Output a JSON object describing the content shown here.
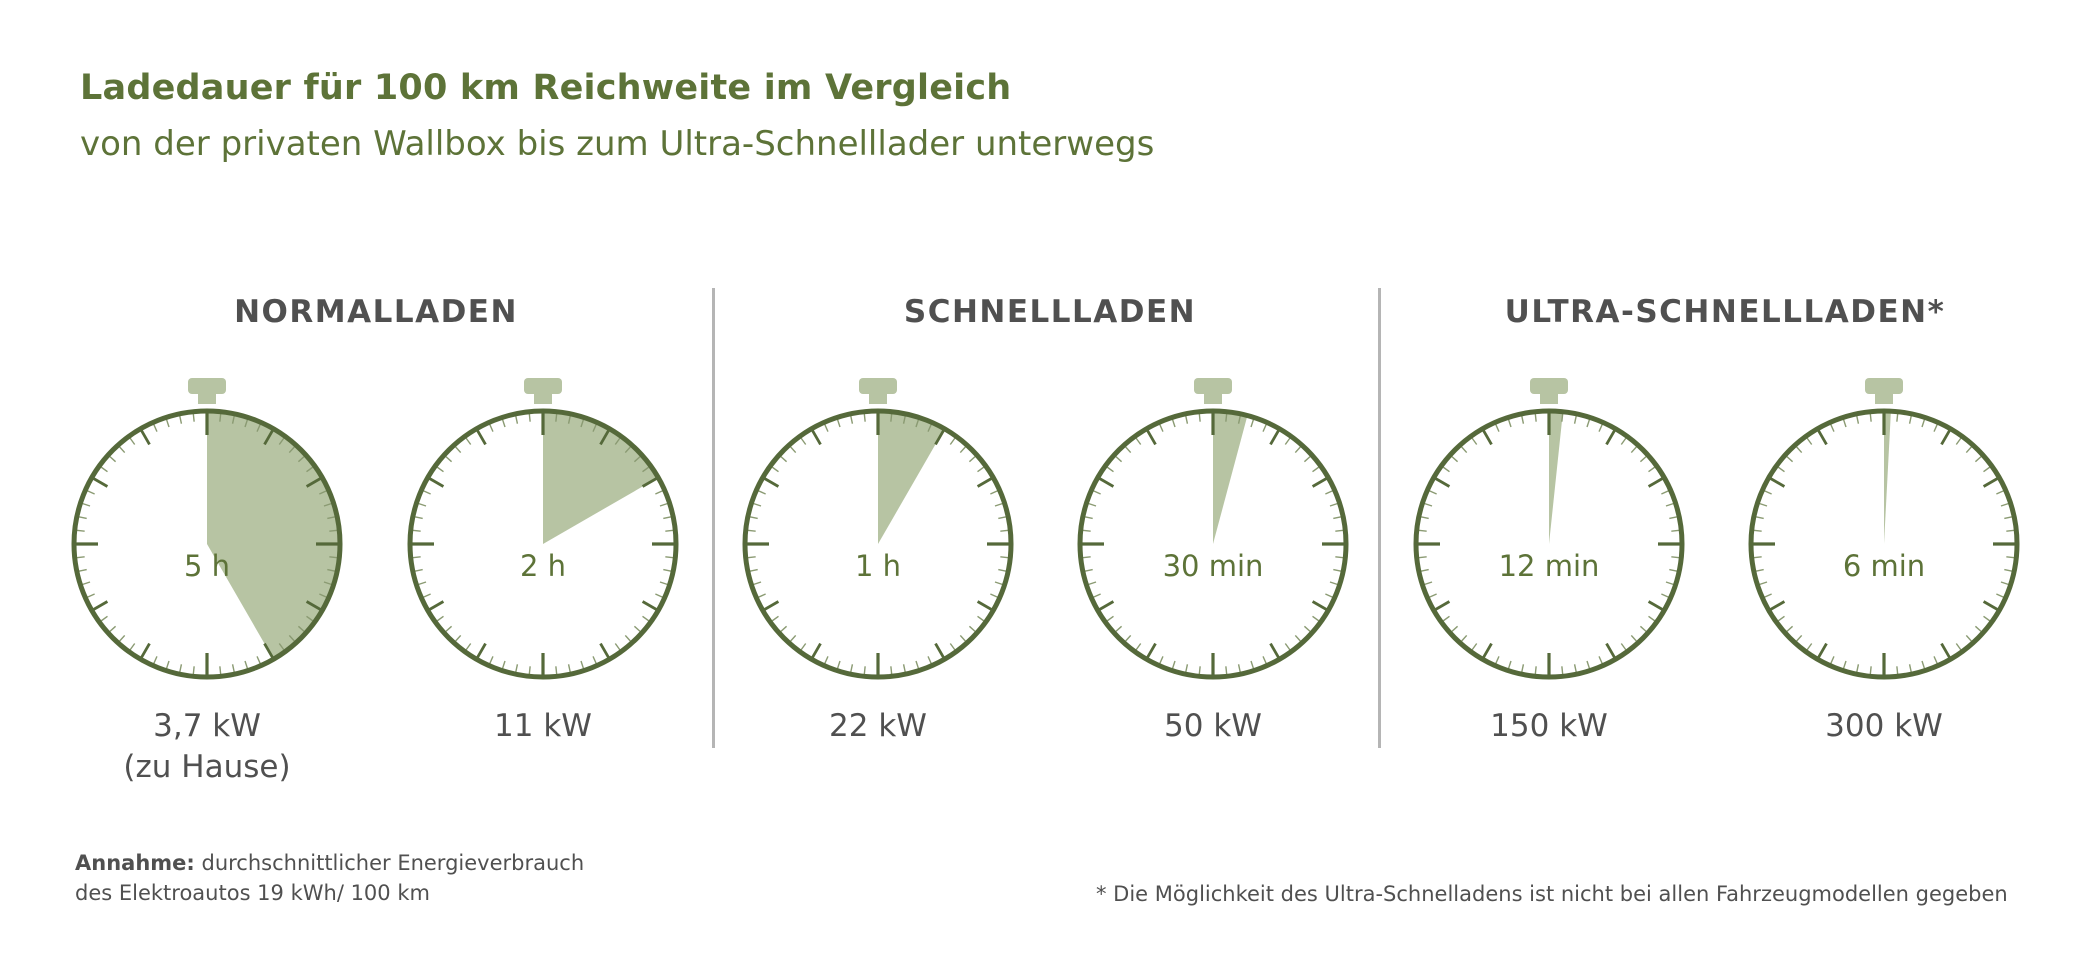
{
  "colors": {
    "accent": "#5d7338",
    "ring": "#55693a",
    "fill": "#b7c4a3",
    "crown": "#b7c4a3",
    "text": "#505050",
    "divider": "#b5b5b5"
  },
  "header": {
    "title": "Ladedauer für 100 km Reichweite im Vergleich",
    "subtitle": "von der privaten Wallbox bis zum Ultra-Schnelllader unterwegs"
  },
  "sections": [
    {
      "label": "NORMALLADEN"
    },
    {
      "label": "SCHNELLLADEN"
    },
    {
      "label": "ULTRA-SCHNELLLADEN*"
    }
  ],
  "chart_data": {
    "type": "stopwatch",
    "title": "Ladedauer für 100 km Reichweite im Vergleich",
    "unit_minutes_full_dial": 60,
    "groups": [
      "NORMALLADEN",
      "SCHNELLLADEN",
      "ULTRA-SCHNELLLADEN*"
    ],
    "items": [
      {
        "group": "NORMALLADEN",
        "time_label": "5 h",
        "duration_min": 300,
        "dial_fraction": 0.4167,
        "power_label": "3,7 kW",
        "power_sub": "(zu Hause)"
      },
      {
        "group": "NORMALLADEN",
        "time_label": "2 h",
        "duration_min": 120,
        "dial_fraction": 0.1667,
        "power_label": "11 kW",
        "power_sub": ""
      },
      {
        "group": "SCHNELLLADEN",
        "time_label": "1 h",
        "duration_min": 60,
        "dial_fraction": 0.0833,
        "power_label": "22 kW",
        "power_sub": ""
      },
      {
        "group": "SCHNELLLADEN",
        "time_label": "30 min",
        "duration_min": 30,
        "dial_fraction": 0.0417,
        "power_label": "50 kW",
        "power_sub": ""
      },
      {
        "group": "ULTRA-SCHNELLLADEN*",
        "time_label": "12 min",
        "duration_min": 12,
        "dial_fraction": 0.0167,
        "power_label": "150 kW",
        "power_sub": ""
      },
      {
        "group": "ULTRA-SCHNELLLADEN*",
        "time_label": "6 min",
        "duration_min": 6,
        "dial_fraction": 0.0083,
        "power_label": "300 kW",
        "power_sub": ""
      }
    ]
  },
  "footer": {
    "assumption_lead": "Annahme:",
    "assumption_text": "durchschnittlicher Energieverbrauch",
    "assumption_line2": "des Elektroautos 19 kWh/ 100 km",
    "footnote": "* Die Möglichkeit des Ultra-Schnelladens ist nicht bei allen Fahrzeugmodellen gegeben"
  }
}
